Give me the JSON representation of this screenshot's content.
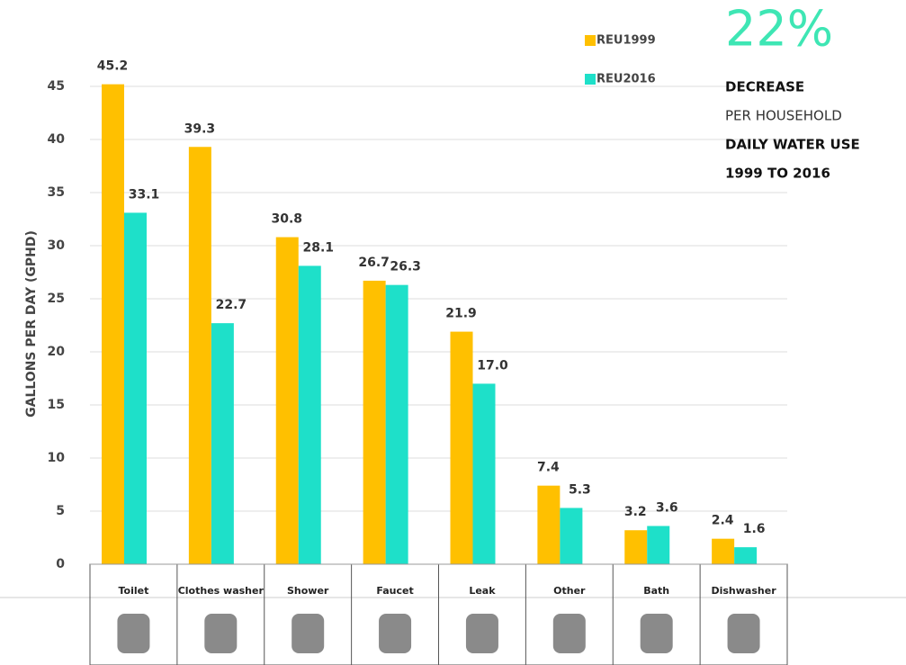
{
  "chart_data": {
    "type": "bar",
    "y_label": "GALLONS PER DAY (GPHD)",
    "categories": [
      "Toilet",
      "Clothes washer",
      "Shower",
      "Faucet",
      "Leak",
      "Other",
      "Bath",
      "Dishwasher"
    ],
    "series": [
      {
        "name": "REU1999",
        "color": "#ffc000",
        "values": [
          45.2,
          39.3,
          30.8,
          26.7,
          21.9,
          7.4,
          3.2,
          2.4
        ],
        "value_labels": [
          "45.2",
          "39.3",
          "30.8",
          "26.7",
          "21.9",
          "7.4",
          "3.2",
          "2.4"
        ]
      },
      {
        "name": "REU2016",
        "color": "#1ee0c9",
        "values": [
          33.1,
          22.7,
          28.1,
          26.3,
          17,
          5.3,
          3.6,
          1.6
        ],
        "value_labels": [
          "33.1",
          "22.7",
          "28.1",
          "26.3",
          "17.0",
          "5.3",
          "3.6",
          "1.6"
        ]
      }
    ],
    "ylim": [
      0,
      45
    ],
    "yticks": [
      0,
      5,
      10,
      15,
      20,
      25,
      30,
      35,
      40,
      45
    ],
    "grid": true,
    "annotation": {
      "headline": "22%",
      "lines": [
        "DECREASE",
        "PER HOUSEHOLD",
        "DAILY WATER USE",
        "1999 TO 2016"
      ]
    }
  }
}
